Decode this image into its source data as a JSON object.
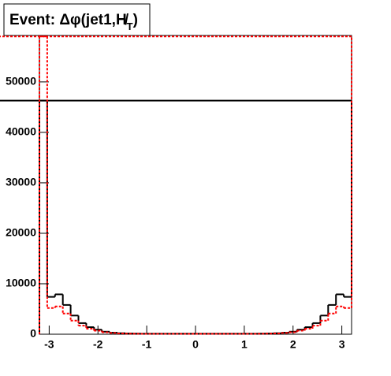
{
  "chart_data": {
    "type": "histogram",
    "title": [
      "Event: Δφ(jet1,H̸",
      "T",
      ")"
    ],
    "bins": [
      -3.2,
      -3.04,
      -2.88,
      -2.72,
      -2.56,
      -2.4,
      -2.24,
      -2.08,
      -1.92,
      -1.76,
      -1.6,
      -1.44,
      -1.28,
      -1.12,
      -0.96,
      -0.8,
      -0.64,
      -0.48,
      -0.32,
      -0.16,
      0,
      0.16,
      0.32,
      0.48,
      0.64,
      0.8,
      0.96,
      1.12,
      1.28,
      1.44,
      1.6,
      1.76,
      1.92,
      2.08,
      2.24,
      2.4,
      2.56,
      2.72,
      2.88,
      3.04,
      3.2
    ],
    "series": [
      {
        "color": "#000000",
        "style": "solid",
        "values": [
          46300,
          7400,
          7900,
          5800,
          3700,
          2200,
          1400,
          900,
          500,
          300,
          200,
          150,
          120,
          100,
          100,
          100,
          100,
          100,
          100,
          100,
          100,
          100,
          100,
          100,
          100,
          100,
          100,
          100,
          120,
          150,
          200,
          300,
          500,
          900,
          1400,
          2200,
          3700,
          5800,
          7900,
          7400,
          46300
        ]
      },
      {
        "color": "#ff0000",
        "style": "dotted",
        "values": [
          59000,
          5200,
          5500,
          4100,
          2700,
          1700,
          1100,
          700,
          400,
          250,
          150,
          120,
          100,
          80,
          80,
          80,
          80,
          80,
          80,
          80,
          80,
          80,
          80,
          80,
          80,
          80,
          80,
          80,
          100,
          120,
          150,
          250,
          400,
          700,
          1100,
          1700,
          2700,
          4100,
          5500,
          5200,
          59000
        ]
      }
    ],
    "xlim": [
      -3.2,
      3.2
    ],
    "xticks": [
      -3,
      -2,
      -1,
      0,
      1,
      2,
      3
    ],
    "ylim": [
      0,
      59200
    ],
    "yticks": [
      0,
      10000,
      20000,
      30000,
      40000,
      50000
    ]
  }
}
